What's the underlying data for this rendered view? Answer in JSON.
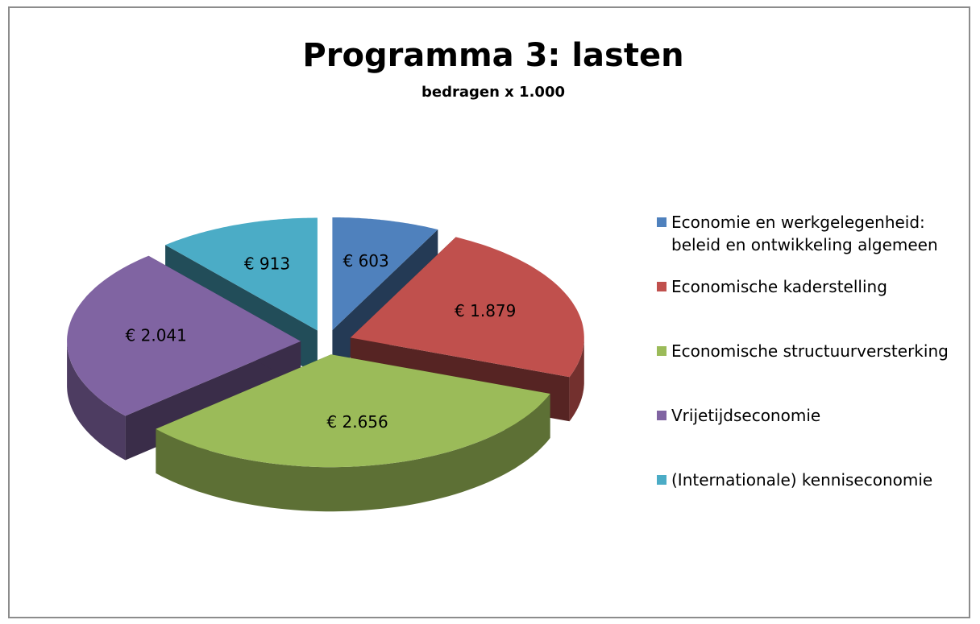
{
  "chart_data": {
    "type": "pie",
    "title": "Programma 3: lasten",
    "subtitle": "bedragen x 1.000",
    "categories": [
      "Economie en werkgelegenheid: beleid en ontwikkeling algemeen",
      "Economische kaderstelling",
      "Economische structuurversterking",
      "Vrijetijdseconomie",
      "(Internationale) kenniseconomie"
    ],
    "values": [
      603,
      1879,
      2656,
      2041,
      913
    ],
    "value_labels": [
      "€ 603",
      "€ 1.879",
      "€ 2.656",
      "€ 2.041",
      "€ 913"
    ],
    "colors": [
      "#4f81bd",
      "#c0504d",
      "#9bbb59",
      "#8064a2",
      "#4bacc6"
    ],
    "legend": "right"
  }
}
